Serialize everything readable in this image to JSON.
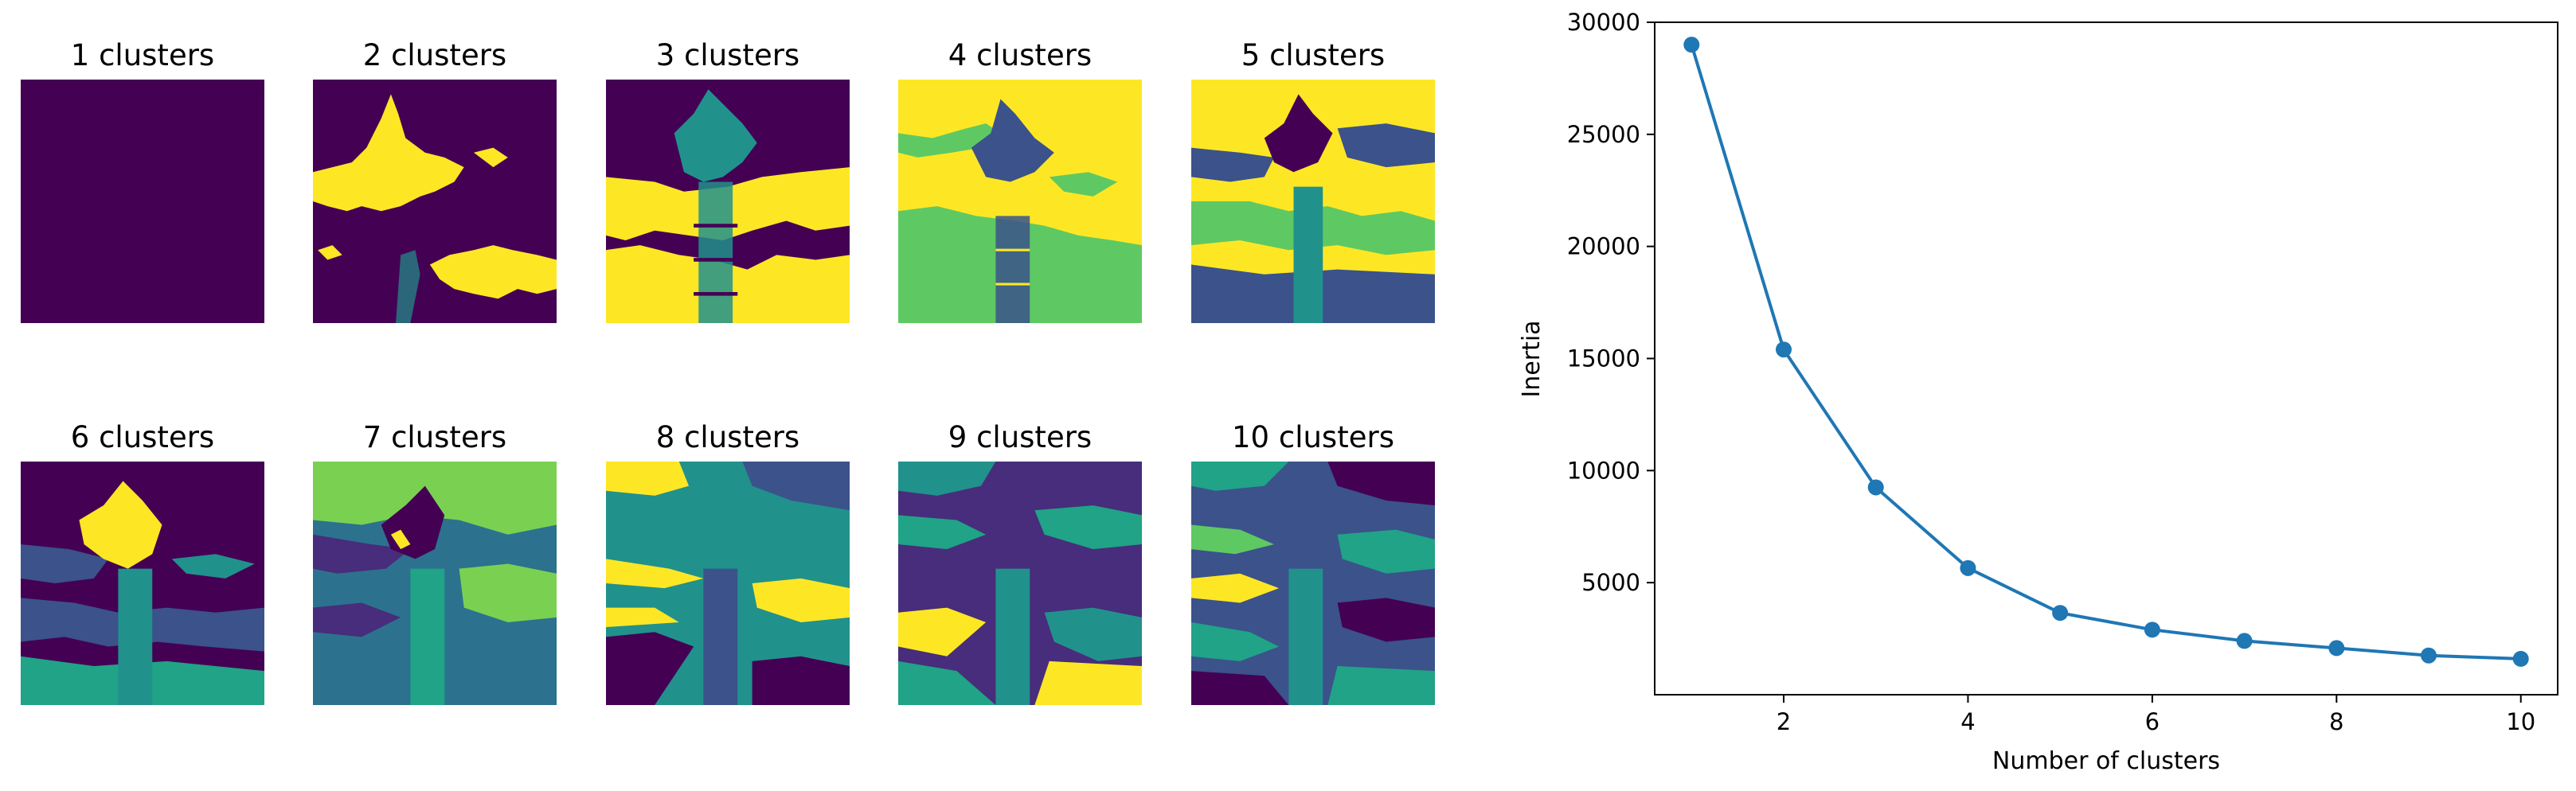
{
  "colors": {
    "c0": "#440154",
    "c1": "#3b528b",
    "c2": "#21918c",
    "c3": "#5ec962",
    "c4": "#fde725",
    "c5": "#2c728e",
    "c6": "#7ad151",
    "c7": "#20a386",
    "c8": "#472d7b",
    "line": "#1f77b4"
  },
  "panels": [
    {
      "title": "1 clusters"
    },
    {
      "title": "2 clusters"
    },
    {
      "title": "3 clusters"
    },
    {
      "title": "4 clusters"
    },
    {
      "title": "5 clusters"
    },
    {
      "title": "6 clusters"
    },
    {
      "title": "7 clusters"
    },
    {
      "title": "8 clusters"
    },
    {
      "title": "9 clusters"
    },
    {
      "title": "10 clusters"
    }
  ],
  "chart_data": {
    "type": "line",
    "x": [
      1,
      2,
      3,
      4,
      5,
      6,
      7,
      8,
      9,
      10
    ],
    "y": [
      29000,
      15400,
      9250,
      5650,
      3650,
      2900,
      2400,
      2080,
      1750,
      1600
    ],
    "xlabel": "Number of clusters",
    "ylabel": "Inertia",
    "xlim": [
      0.6,
      10.4
    ],
    "ylim": [
      0,
      30000
    ],
    "xticks": [
      "2",
      "4",
      "6",
      "8",
      "10"
    ],
    "yticks": [
      "5000",
      "10000",
      "15000",
      "20000",
      "25000",
      "30000"
    ],
    "grid": false,
    "marker": "circle"
  }
}
